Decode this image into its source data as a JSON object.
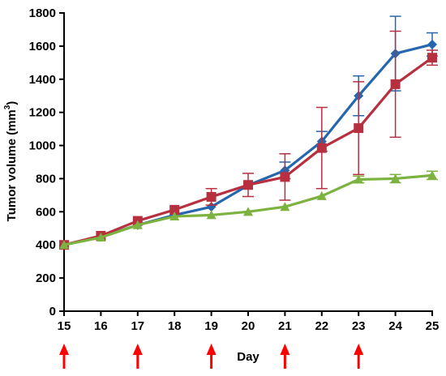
{
  "chart_data": {
    "type": "line",
    "xlabel": "Day",
    "ylabel": "Tumor volume (mm",
    "ylabel_sup": "3",
    "ylabel_close": ")",
    "x": [
      15,
      16,
      17,
      18,
      19,
      20,
      21,
      22,
      23,
      24,
      25
    ],
    "xlim": [
      15,
      25
    ],
    "ylim": [
      0,
      1800
    ],
    "yticks": [
      0,
      200,
      400,
      600,
      800,
      1000,
      1200,
      1400,
      1600,
      1800
    ],
    "grid": false,
    "legend": "none",
    "series": [
      {
        "color": "#2566ae",
        "marker": "diamond",
        "values": [
          400,
          448,
          520,
          580,
          630,
          760,
          850,
          1025,
          1300,
          1555,
          1610
        ],
        "err": [
          0,
          0,
          0,
          0,
          0,
          0,
          50,
          60,
          120,
          225,
          70
        ]
      },
      {
        "color": "#b63040",
        "marker": "square",
        "values": [
          400,
          455,
          545,
          612,
          690,
          762,
          810,
          985,
          1105,
          1370,
          1530
        ],
        "err": [
          0,
          0,
          0,
          0,
          50,
          70,
          140,
          245,
          280,
          320,
          45
        ]
      },
      {
        "color": "#7cb23f",
        "marker": "triangle",
        "values": [
          400,
          445,
          520,
          572,
          580,
          600,
          630,
          695,
          795,
          800,
          820
        ],
        "err": [
          0,
          0,
          0,
          0,
          0,
          0,
          0,
          0,
          20,
          25,
          25
        ]
      }
    ],
    "arrows": {
      "color": "#ff0000",
      "days": [
        15,
        17,
        19,
        21,
        23
      ]
    }
  }
}
